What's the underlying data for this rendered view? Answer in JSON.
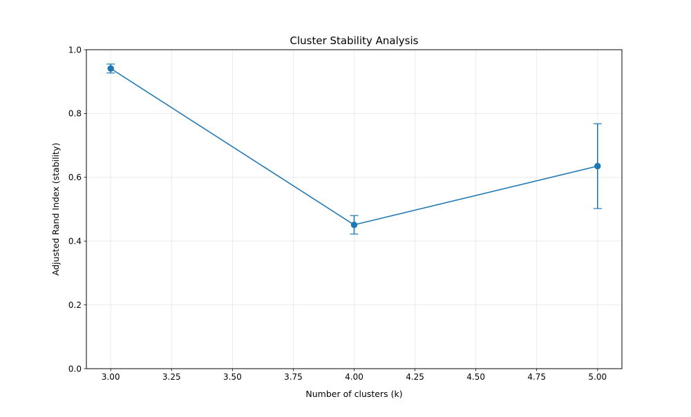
{
  "chart_data": {
    "type": "line",
    "title": "Cluster Stability Analysis",
    "xlabel": "Number of clusters (k)",
    "ylabel": "Adjusted Rand Index (stability)",
    "xlim": [
      2.9,
      5.1
    ],
    "ylim": [
      0.0,
      1.0
    ],
    "x_ticks": [
      "3.00",
      "3.25",
      "3.50",
      "3.75",
      "4.00",
      "4.25",
      "4.50",
      "4.75",
      "5.00"
    ],
    "y_ticks": [
      "0.0",
      "0.2",
      "0.4",
      "0.6",
      "0.8",
      "1.0"
    ],
    "grid": true,
    "legend": false,
    "series": [
      {
        "x": [
          3,
          4,
          5
        ],
        "values": [
          0.941,
          0.451,
          0.635
        ],
        "error": [
          0.014,
          0.029,
          0.133
        ],
        "error_bars": true,
        "marker": "circle",
        "color": "#1f77b4"
      }
    ]
  }
}
